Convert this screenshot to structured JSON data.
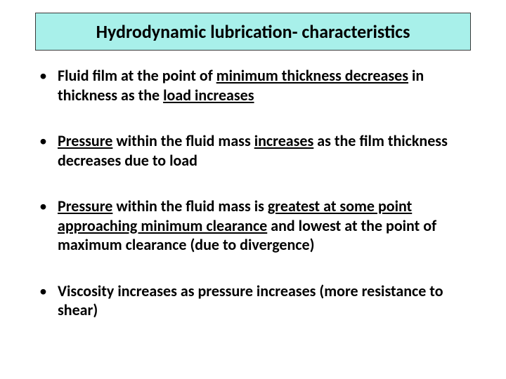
{
  "slide": {
    "title": "Hydrodynamic lubrication- characteristics",
    "title_bg": "#a8f0ea",
    "title_border": "#3a3a3a",
    "title_fontsize": 26,
    "bullet_fontsize": 22,
    "bullet_spacing": 38,
    "bullets": [
      {
        "runs": [
          {
            "t": "Fluid film at the point of ",
            "b": true
          },
          {
            "t": "minimum thickness decreases",
            "b": true,
            "u": true
          },
          {
            "t": " in thickness as the ",
            "b": true
          },
          {
            "t": "load increases",
            "b": true,
            "u": true
          }
        ]
      },
      {
        "runs": [
          {
            "t": "Pressure",
            "b": true,
            "u": true
          },
          {
            "t": " within the fluid mass ",
            "b": true
          },
          {
            "t": "increases",
            "b": true,
            "u": true
          },
          {
            "t": " as the film thickness decreases due to load",
            "b": true
          }
        ]
      },
      {
        "runs": [
          {
            "t": "Pressure",
            "b": true,
            "u": true
          },
          {
            "t": " within the fluid mass is ",
            "b": true
          },
          {
            "t": "greatest at some point approaching minimum clearance",
            "b": true,
            "u": true
          },
          {
            "t": " and lowest at the point of maximum clearance (due to divergence)",
            "b": true
          }
        ]
      },
      {
        "runs": [
          {
            "t": "Viscosity increases as pressure increases (more resistance to shear)",
            "b": true
          }
        ]
      }
    ]
  }
}
